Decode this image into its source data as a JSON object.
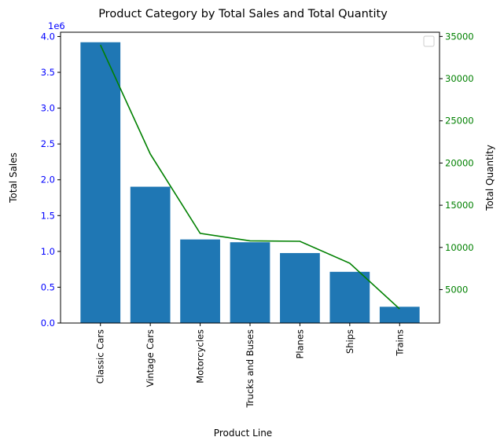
{
  "chart_data": {
    "type": "bar",
    "title": "Product Category by Total Sales and Total Quantity",
    "xlabel": "Product Line",
    "categories": [
      "Classic Cars",
      "Vintage Cars",
      "Motorcycles",
      "Trucks and Buses",
      "Planes",
      "Ships",
      "Trains"
    ],
    "left_axis": {
      "label": "Total Sales",
      "multiplier_text": "1e6",
      "ylim": [
        0,
        4.06
      ],
      "ticks": [
        0.0,
        0.5,
        1.0,
        1.5,
        2.0,
        2.5,
        3.0,
        3.5,
        4.0
      ],
      "tick_labels": [
        "0.0",
        "0.5",
        "1.0",
        "1.5",
        "2.0",
        "2.5",
        "3.0",
        "3.5",
        "4.0"
      ],
      "color": "#0000ff"
    },
    "right_axis": {
      "label": "Total Quantity",
      "ylim": [
        1040,
        35500
      ],
      "ticks": [
        5000,
        10000,
        15000,
        20000,
        25000,
        30000,
        35000
      ],
      "tick_labels": [
        "5000",
        "10000",
        "15000",
        "20000",
        "25000",
        "30000",
        "35000"
      ],
      "color": "#008000"
    },
    "series": [
      {
        "type": "bar",
        "axis": "left",
        "color": "#1f77b4",
        "values": [
          3920000,
          1903000,
          1167000,
          1128000,
          977000,
          715000,
          227000
        ]
      },
      {
        "type": "line",
        "axis": "right",
        "color": "#008000",
        "values": [
          33992,
          21069,
          11663,
          10777,
          10727,
          8127,
          2712
        ]
      }
    ],
    "legend": {
      "placement": "top-right",
      "entries": []
    },
    "grid": false
  }
}
